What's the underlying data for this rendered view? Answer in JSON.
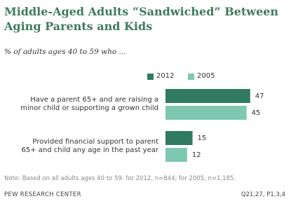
{
  "chart_data": {
    "type": "bar",
    "orientation": "horizontal",
    "title": "Middle-Aged Adults “Sandwiched” Between Aging Parents and Kids",
    "subtitle": "% of adults ages 40 to 59 who ...",
    "categories": [
      "Have a parent 65+ and are raising a minor child or supporting a grown child",
      "Provided financial support to parent 65+ and child any age in the past year"
    ],
    "series": [
      {
        "name": "2012",
        "color": "#2f7a61",
        "values": [
          47,
          15
        ]
      },
      {
        "name": "2005",
        "color": "#7ec7b0",
        "values": [
          45,
          12
        ]
      }
    ],
    "note": "Note: Based on all adults ages 40 to 59: for 2012, n=844; for 2005, n=1,185.",
    "source": "PEW RESEARCH CENTER",
    "source_ref": "Q21,27, P1,3,4"
  }
}
